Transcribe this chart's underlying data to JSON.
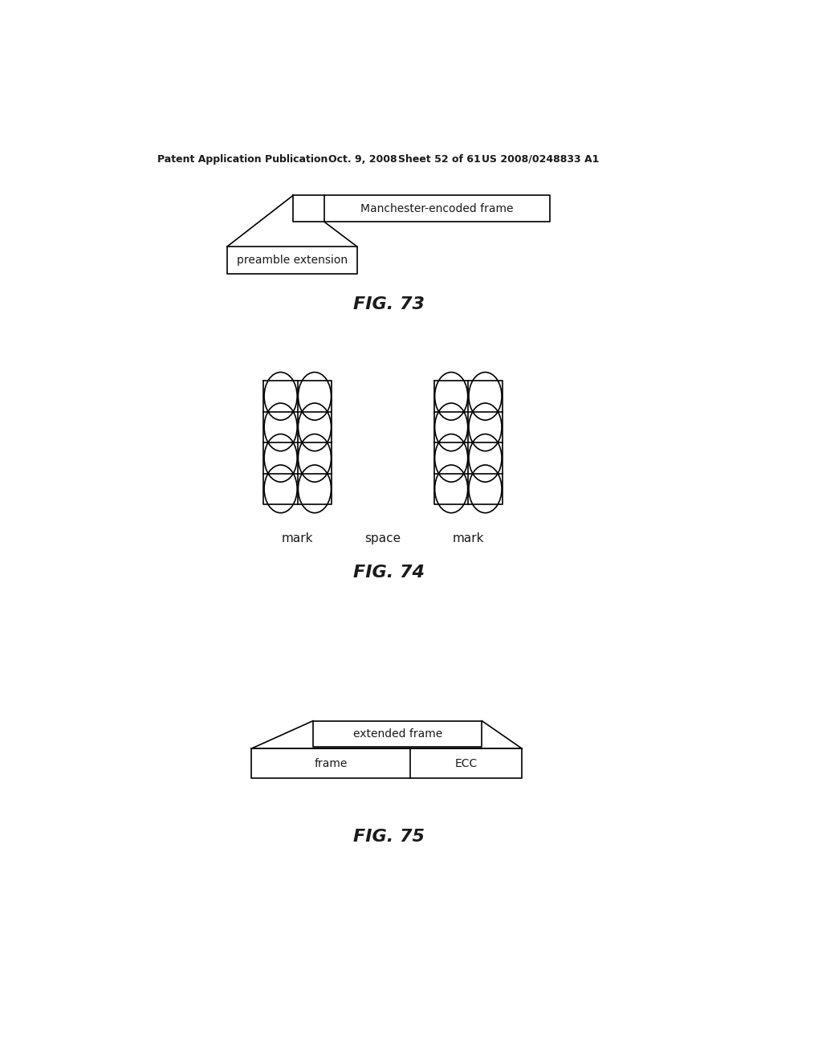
{
  "bg_color": "#ffffff",
  "header_text": "Patent Application Publication",
  "header_date": "Oct. 9, 2008",
  "header_sheet": "Sheet 52 of 61",
  "header_patent": "US 2008/0248833 A1",
  "fig73_label": "FIG. 73",
  "fig74_label": "FIG. 74",
  "fig75_label": "FIG. 75",
  "fig73_box1_label": "Manchester-encoded frame",
  "fig73_box2_label": "preamble extension",
  "fig74_label_left": "mark",
  "fig74_label_mid": "space",
  "fig74_label_right": "mark",
  "fig75_top_label": "extended frame",
  "fig75_left_label": "frame",
  "fig75_right_label": "ECC"
}
